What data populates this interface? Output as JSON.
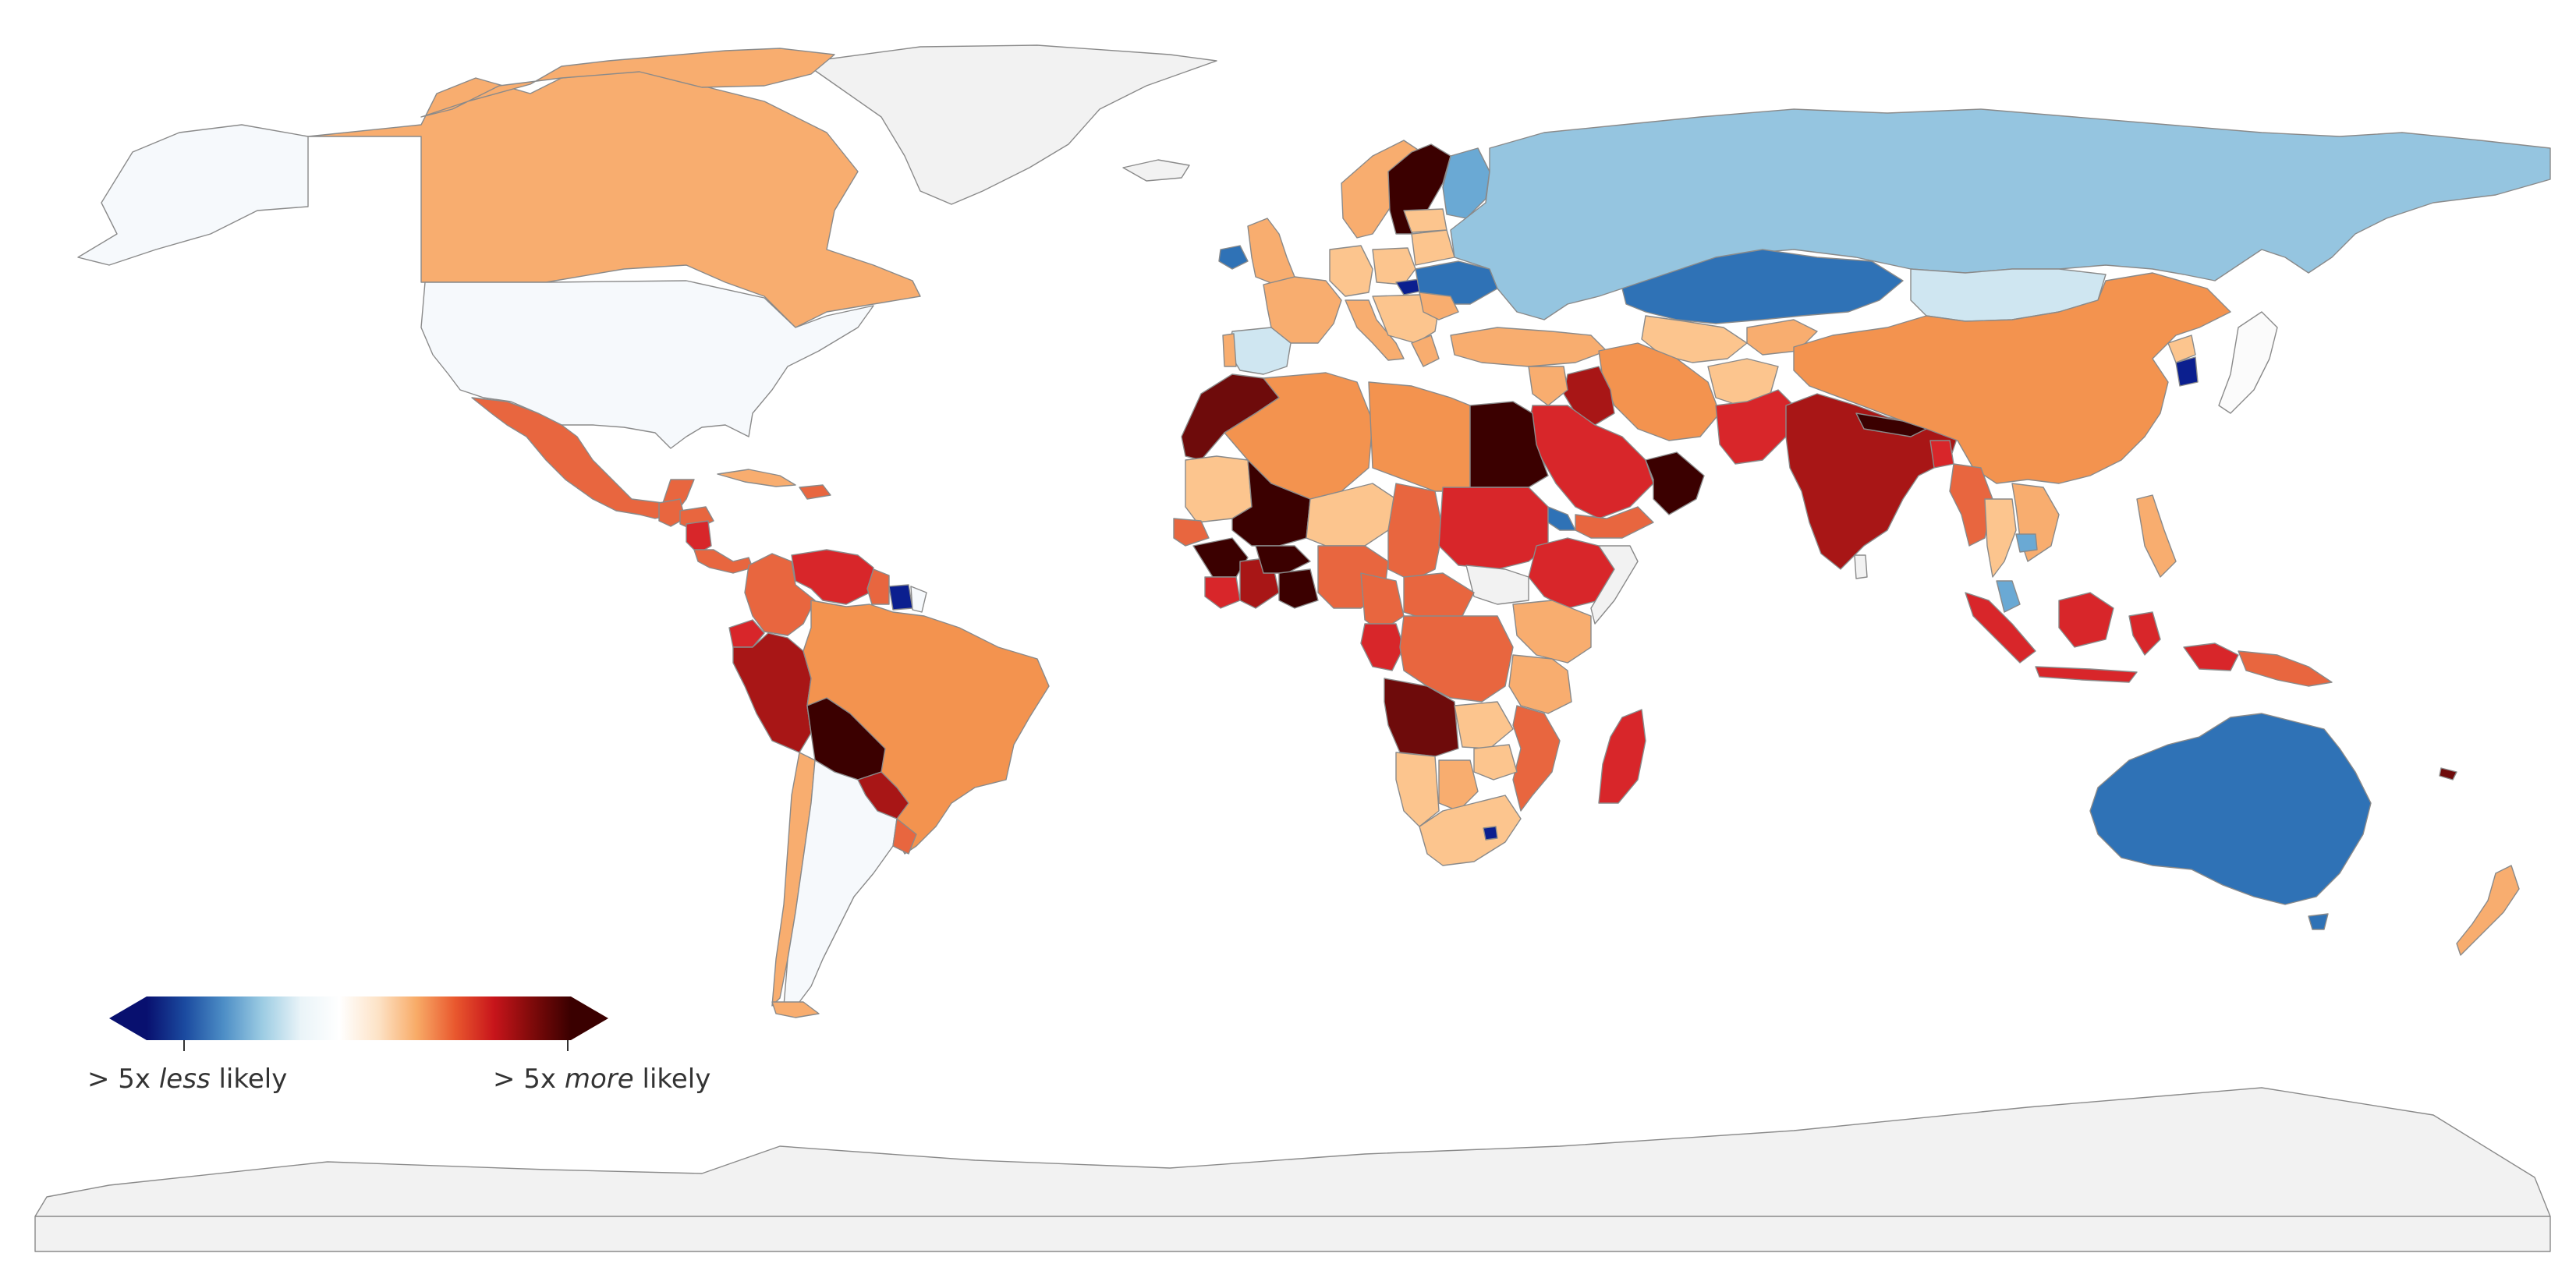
{
  "map": {
    "nodata_color": "#f2f2f2",
    "border_color": "#8a8a8a",
    "palette": {
      "much_less": "#0b1f8f",
      "less_strong": "#2f72b6",
      "less": "#6aa9d4",
      "less_light": "#95c5e0",
      "less_faint": "#cfe6f1",
      "near_neutral": "#f6f9fc",
      "neutral": "#fbfbfb",
      "more_light": "#fcc58e",
      "more_mild": "#f8ad6f",
      "more": "#f3934f",
      "more_mid": "#e8663f",
      "more_strong": "#d8262a",
      "more_stronger": "#a81616",
      "more_deep": "#6e0b0b",
      "much_more": "#3b0000"
    }
  },
  "legend": {
    "gradient_stops": [
      "#08106f",
      "#1b4ba0",
      "#4d8ec6",
      "#9ccce3",
      "#eaf4f8",
      "#ffffff",
      "#fde3c7",
      "#f8ab67",
      "#e9582e",
      "#c8151b",
      "#7e0a0a",
      "#3a0000"
    ],
    "left_prefix": "> 5x ",
    "left_emph": "less",
    "left_suffix": " likely",
    "right_prefix": "> 5x ",
    "right_emph": "more",
    "right_suffix": " likely"
  }
}
